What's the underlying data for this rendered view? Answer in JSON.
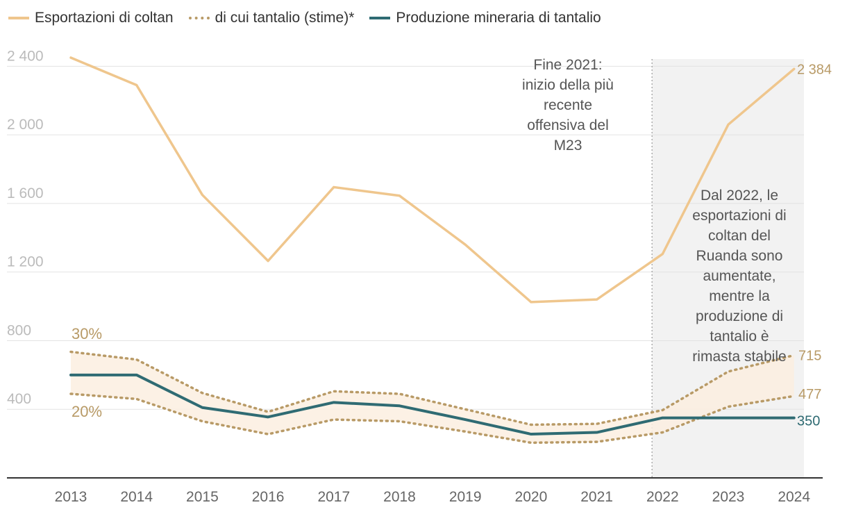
{
  "legend": {
    "exports": "Esportazioni di coltan",
    "tantalum_share": "di cui tantalio (stime)*",
    "production": "Produzione mineraria di tantalio"
  },
  "colors": {
    "exports": "#efc68d",
    "tantalum_share": "#b89a66",
    "production": "#2f6b73",
    "band_fill": "#fbeee0",
    "shade": "#f2f2f2",
    "grid": "#e3e3e3",
    "axis": "#333333",
    "tick": "#bbbbbb",
    "annotation": "#555555"
  },
  "chart_data": {
    "type": "line",
    "x": [
      2013,
      2014,
      2015,
      2016,
      2017,
      2018,
      2019,
      2020,
      2021,
      2022,
      2023,
      2024
    ],
    "ylim": [
      0,
      2450
    ],
    "yticks": [
      400,
      800,
      1200,
      1600,
      2000,
      2400
    ],
    "ytick_labels": [
      "400",
      "800",
      "1 200",
      "1 600",
      "2 000",
      "2 400"
    ],
    "series": [
      {
        "name": "Esportazioni di coltan",
        "style": "solid",
        "values": [
          2450,
          2290,
          1650,
          1265,
          1695,
          1645,
          1360,
          1025,
          1040,
          1305,
          2060,
          2384
        ]
      },
      {
        "name": "di cui tantalio 30%",
        "style": "dotted",
        "values": [
          735,
          690,
          495,
          385,
          505,
          490,
          400,
          310,
          315,
          395,
          620,
          715
        ]
      },
      {
        "name": "di cui tantalio 20%",
        "style": "dotted",
        "values": [
          490,
          460,
          330,
          255,
          340,
          330,
          270,
          205,
          210,
          265,
          415,
          477
        ]
      },
      {
        "name": "Produzione mineraria di tantalio",
        "style": "solid",
        "values": [
          600,
          600,
          410,
          355,
          440,
          420,
          340,
          255,
          265,
          350,
          350,
          350
        ]
      }
    ],
    "band_labels": {
      "upper": "30%",
      "lower": "20%"
    },
    "end_labels": {
      "exports": "2 384",
      "upper": "715",
      "lower": "477",
      "production": "350"
    },
    "shaded_from": 2022,
    "annotations": {
      "offensive": [
        "Fine 2021:",
        "inizio della più",
        "recente",
        "offensiva del",
        "M23"
      ],
      "since2022": [
        "Dal 2022, le",
        "esportazioni di",
        "coltan del",
        "Ruanda sono",
        "aumentate,",
        "mentre la",
        "produzione di",
        "tantalio è",
        "rimasta stabile"
      ]
    }
  }
}
